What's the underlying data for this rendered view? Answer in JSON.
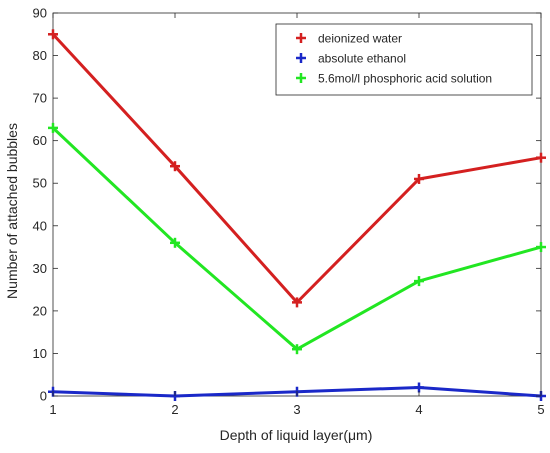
{
  "chart_data": {
    "type": "line",
    "xlabel": "Depth of liquid layer(μm)",
    "ylabel": "Number of attached bubbles",
    "x": [
      1,
      2,
      3,
      4,
      5
    ],
    "xlim": [
      1,
      5
    ],
    "ylim": [
      0,
      90
    ],
    "xticks": [
      "1",
      "2",
      "3",
      "4",
      "5"
    ],
    "yticks": [
      "0",
      "10",
      "20",
      "30",
      "40",
      "50",
      "60",
      "70",
      "80",
      "90"
    ],
    "grid": false,
    "legend_position": "top-right",
    "series": [
      {
        "name": "deionized water",
        "color": "#d42020",
        "values": [
          85,
          54,
          22,
          51,
          56
        ]
      },
      {
        "name": "absolute ethanol",
        "color": "#1a28c8",
        "values": [
          1,
          0,
          1,
          2,
          0
        ]
      },
      {
        "name": "5.6mol/l phosphoric acid solution",
        "color": "#22e622",
        "values": [
          63,
          36,
          11,
          27,
          35
        ]
      }
    ]
  }
}
